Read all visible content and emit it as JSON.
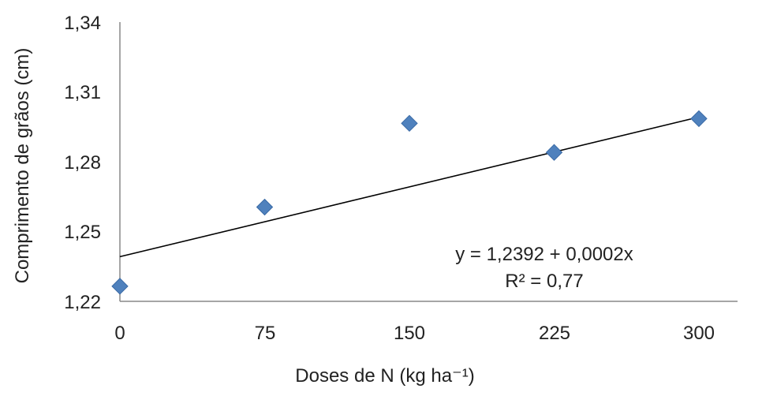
{
  "chart_data": {
    "type": "scatter",
    "xlabel": "Doses de N (kg ha⁻¹)",
    "ylabel": "Comprimento de grãos (cm)",
    "x_ticks": [
      "0",
      "75",
      "150",
      "225",
      "300"
    ],
    "y_ticks": [
      "1,22",
      "1,25",
      "1,28",
      "1,31",
      "1,34"
    ],
    "xlim": [
      0,
      300
    ],
    "ylim": [
      1.22,
      1.34
    ],
    "grid": false,
    "series": [
      {
        "marker": "diamond",
        "color": "#4f81bd",
        "points": [
          {
            "x": 0,
            "y": 1.2265
          },
          {
            "x": 75,
            "y": 1.2605
          },
          {
            "x": 150,
            "y": 1.2965
          },
          {
            "x": 225,
            "y": 1.284
          },
          {
            "x": 300,
            "y": 1.2985
          }
        ]
      }
    ],
    "trendline": {
      "type": "linear",
      "intercept": 1.2392,
      "slope": 0.0002,
      "color": "#000000",
      "equation_label": "y = 1,2392  + 0,0002x",
      "r2_label": "R² = 0,77"
    }
  }
}
